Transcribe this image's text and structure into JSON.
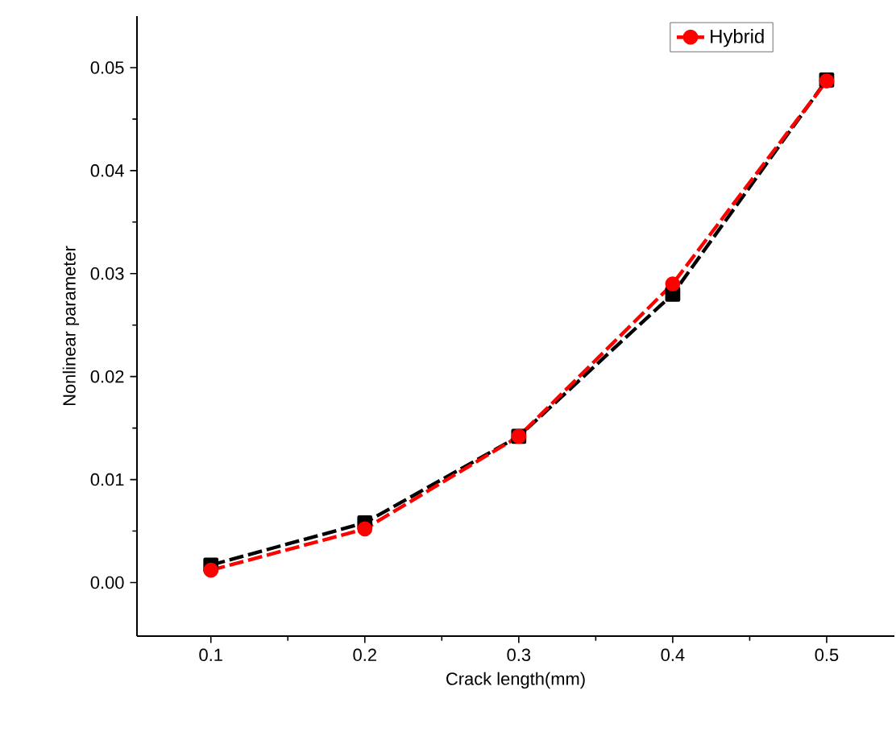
{
  "chart_data": {
    "type": "line",
    "xlabel": "Crack length(mm)",
    "ylabel": "Nonlinear parameter",
    "x": [
      0.1,
      0.2,
      0.3,
      0.4,
      0.5
    ],
    "series": [
      {
        "color": "#000000",
        "marker": "square",
        "line_style": "dashed",
        "values": [
          0.0017,
          0.0058,
          0.0142,
          0.028,
          0.0488
        ]
      },
      {
        "name": "Hybrid",
        "color": "#ff0000",
        "marker": "circle",
        "line_style": "dashed",
        "values": [
          0.0012,
          0.0052,
          0.0142,
          0.029,
          0.0487
        ]
      }
    ],
    "xlim": [
      0.052,
      0.544
    ],
    "ylim": [
      -0.0052,
      0.055
    ],
    "xticks": [
      0.1,
      0.2,
      0.3,
      0.4,
      0.5
    ],
    "yticks": [
      {
        "value": 0,
        "label": "0.00"
      },
      {
        "value": 0.01,
        "label": "0.01"
      },
      {
        "value": 0.02,
        "label": "0.02"
      },
      {
        "value": 0.03,
        "label": "0.03"
      },
      {
        "value": 0.04,
        "label": "0.04"
      },
      {
        "value": 0.05,
        "label": "0.05"
      }
    ],
    "grid": false,
    "legend": "top right"
  }
}
